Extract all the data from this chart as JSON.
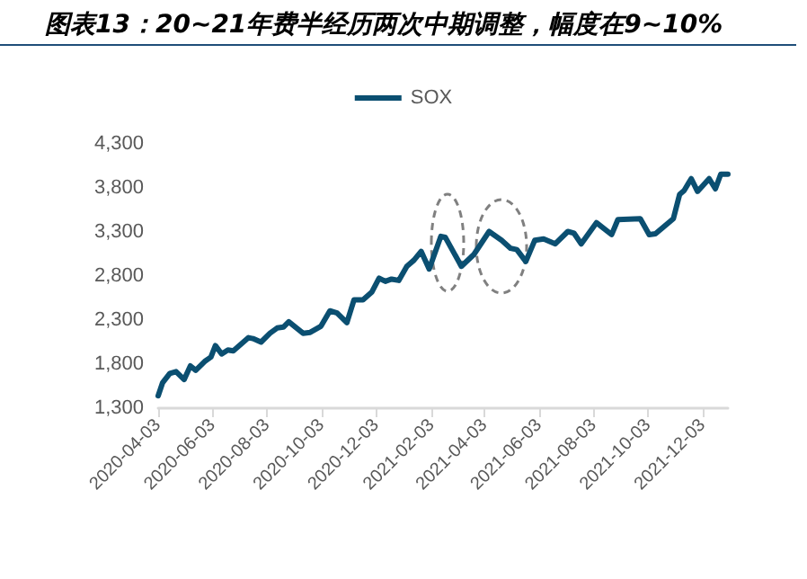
{
  "chart_data": {
    "type": "line",
    "title": "图表13：20~21年费半经历两次中期调整，幅度在9~10%",
    "x": [
      "2020-04-03",
      "2020-04-08",
      "2020-04-16",
      "2020-04-23",
      "2020-05-02",
      "2020-05-09",
      "2020-05-15",
      "2020-05-25",
      "2020-06-01",
      "2020-06-06",
      "2020-06-13",
      "2020-06-20",
      "2020-06-26",
      "2020-07-13",
      "2020-07-18",
      "2020-07-27",
      "2020-08-06",
      "2020-08-14",
      "2020-08-21",
      "2020-08-27",
      "2020-09-12",
      "2020-09-20",
      "2020-10-02",
      "2020-10-12",
      "2020-10-20",
      "2020-10-31",
      "2020-11-08",
      "2020-11-18",
      "2020-11-28",
      "2020-12-06",
      "2020-12-13",
      "2020-12-20",
      "2020-12-28",
      "2021-01-06",
      "2021-01-14",
      "2021-01-22",
      "2021-01-31",
      "2021-02-13",
      "2021-02-18",
      "2021-03-08",
      "2021-03-22",
      "2021-04-08",
      "2021-04-22",
      "2021-05-02",
      "2021-05-09",
      "2021-05-19",
      "2021-05-29",
      "2021-06-08",
      "2021-06-21",
      "2021-07-05",
      "2021-07-12",
      "2021-07-20",
      "2021-08-06",
      "2021-08-23",
      "2021-08-30",
      "2021-09-24",
      "2021-10-04",
      "2021-10-11",
      "2021-10-31",
      "2021-11-07",
      "2021-11-12",
      "2021-11-20",
      "2021-11-27",
      "2021-12-10",
      "2021-12-17",
      "2021-12-23",
      "2021-12-31"
    ],
    "series": [
      {
        "name": "SOX",
        "color": "#0b4f71",
        "values": [
          1440,
          1590,
          1694,
          1715,
          1625,
          1780,
          1730,
          1830,
          1880,
          2010,
          1915,
          1960,
          1950,
          2100,
          2090,
          2050,
          2150,
          2210,
          2220,
          2280,
          2150,
          2160,
          2230,
          2405,
          2380,
          2270,
          2530,
          2530,
          2620,
          2775,
          2740,
          2765,
          2750,
          2910,
          2980,
          3080,
          2880,
          3250,
          3240,
          2910,
          3045,
          3305,
          3205,
          3115,
          3100,
          2965,
          3205,
          3220,
          3165,
          3305,
          3285,
          3165,
          3405,
          3270,
          3440,
          3450,
          3270,
          3280,
          3450,
          3725,
          3770,
          3905,
          3760,
          3905,
          3790,
          3955,
          3955
        ]
      }
    ],
    "xlim": [
      "2020-04-03",
      "2021-12-31"
    ],
    "xticks": [
      "2020-04-03",
      "2020-06-03",
      "2020-08-03",
      "2020-10-03",
      "2020-12-03",
      "2021-02-03",
      "2021-04-03",
      "2021-06-03",
      "2021-08-03",
      "2021-10-03",
      "2021-12-03"
    ],
    "ylim": [
      1300,
      4300
    ],
    "yticks": [
      {
        "value": 1300,
        "label": "1,300"
      },
      {
        "value": 1800,
        "label": "1,800"
      },
      {
        "value": 2300,
        "label": "2,300"
      },
      {
        "value": 2800,
        "label": "2,800"
      },
      {
        "value": 3300,
        "label": "3,300"
      },
      {
        "value": 3800,
        "label": "3,800"
      },
      {
        "value": 4300,
        "label": "4,300"
      }
    ],
    "grid": false,
    "legend": "top",
    "marker": "none",
    "line_style": "solid"
  }
}
